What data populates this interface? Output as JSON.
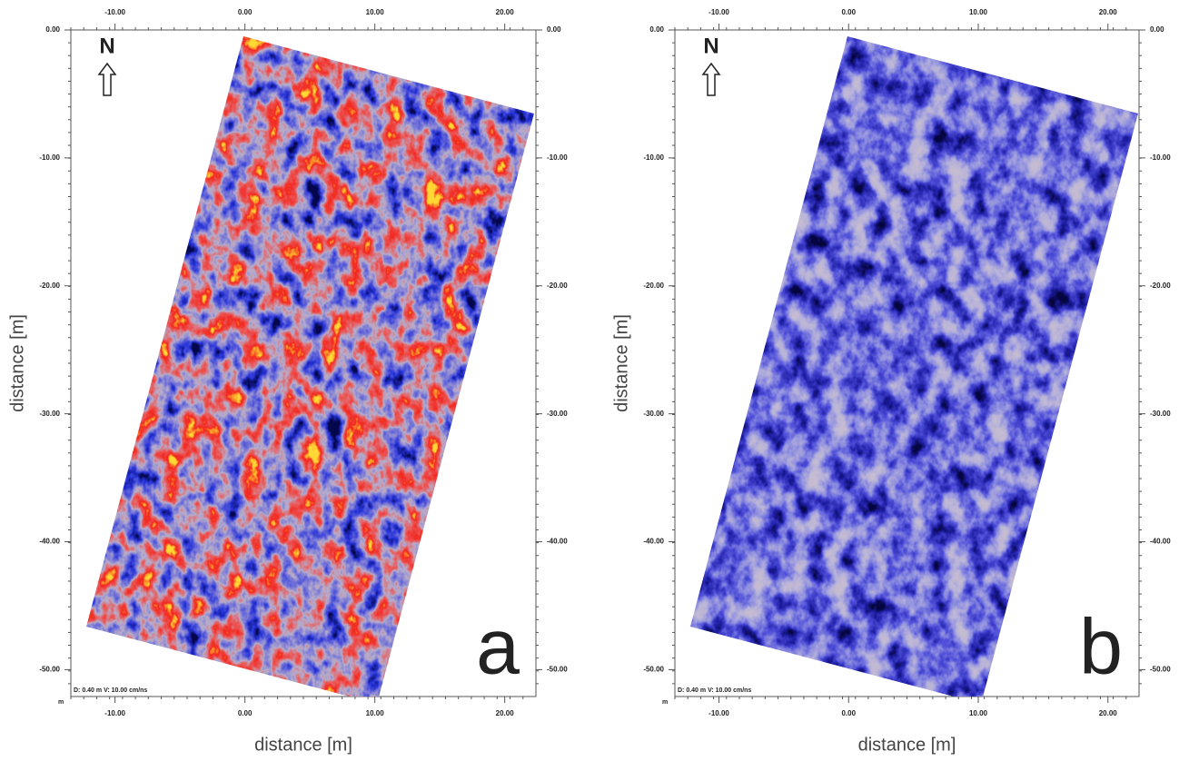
{
  "chart_data": [
    {
      "type": "image",
      "panel_label": "a",
      "north_label": "N",
      "annotation": "D: 0.40 m V: 10.00 cm/ns",
      "corner_label": "m",
      "x_label": "distance [m]",
      "y_label": "distance [m]",
      "color_scheme": "red-blue",
      "xlim": [
        -13.4,
        22.4
      ],
      "ylim": [
        -52.1,
        0
      ],
      "xticks": [
        {
          "value": -10,
          "label": "-10.00"
        },
        {
          "value": 0,
          "label": "0.00"
        },
        {
          "value": 10,
          "label": "10.00"
        },
        {
          "value": 20,
          "label": "20.00"
        }
      ],
      "yticks": [
        {
          "value": 0,
          "label": "0.00"
        },
        {
          "value": -10,
          "label": "-10.00"
        },
        {
          "value": -20,
          "label": "-20.00"
        },
        {
          "value": -30,
          "label": "-30.00"
        },
        {
          "value": -40,
          "label": "-40.00"
        },
        {
          "value": -50,
          "label": "-50.00"
        }
      ]
    },
    {
      "type": "image",
      "panel_label": "b",
      "north_label": "N",
      "annotation": "D: 0.40 m V: 10.00 cm/ns",
      "corner_label": "m",
      "x_label": "distance [m]",
      "y_label": "distance [m]",
      "color_scheme": "blue",
      "xlim": [
        -13.4,
        22.4
      ],
      "ylim": [
        -52.1,
        0
      ],
      "xticks": [
        {
          "value": -10,
          "label": "-10.00"
        },
        {
          "value": 0,
          "label": "0.00"
        },
        {
          "value": 10,
          "label": "10.00"
        },
        {
          "value": 20,
          "label": "20.00"
        }
      ],
      "yticks": [
        {
          "value": 0,
          "label": "0.00"
        },
        {
          "value": -10,
          "label": "-10.00"
        },
        {
          "value": -20,
          "label": "-20.00"
        },
        {
          "value": -30,
          "label": "-30.00"
        },
        {
          "value": -40,
          "label": "-40.00"
        },
        {
          "value": -50,
          "label": "-50.00"
        }
      ]
    }
  ]
}
